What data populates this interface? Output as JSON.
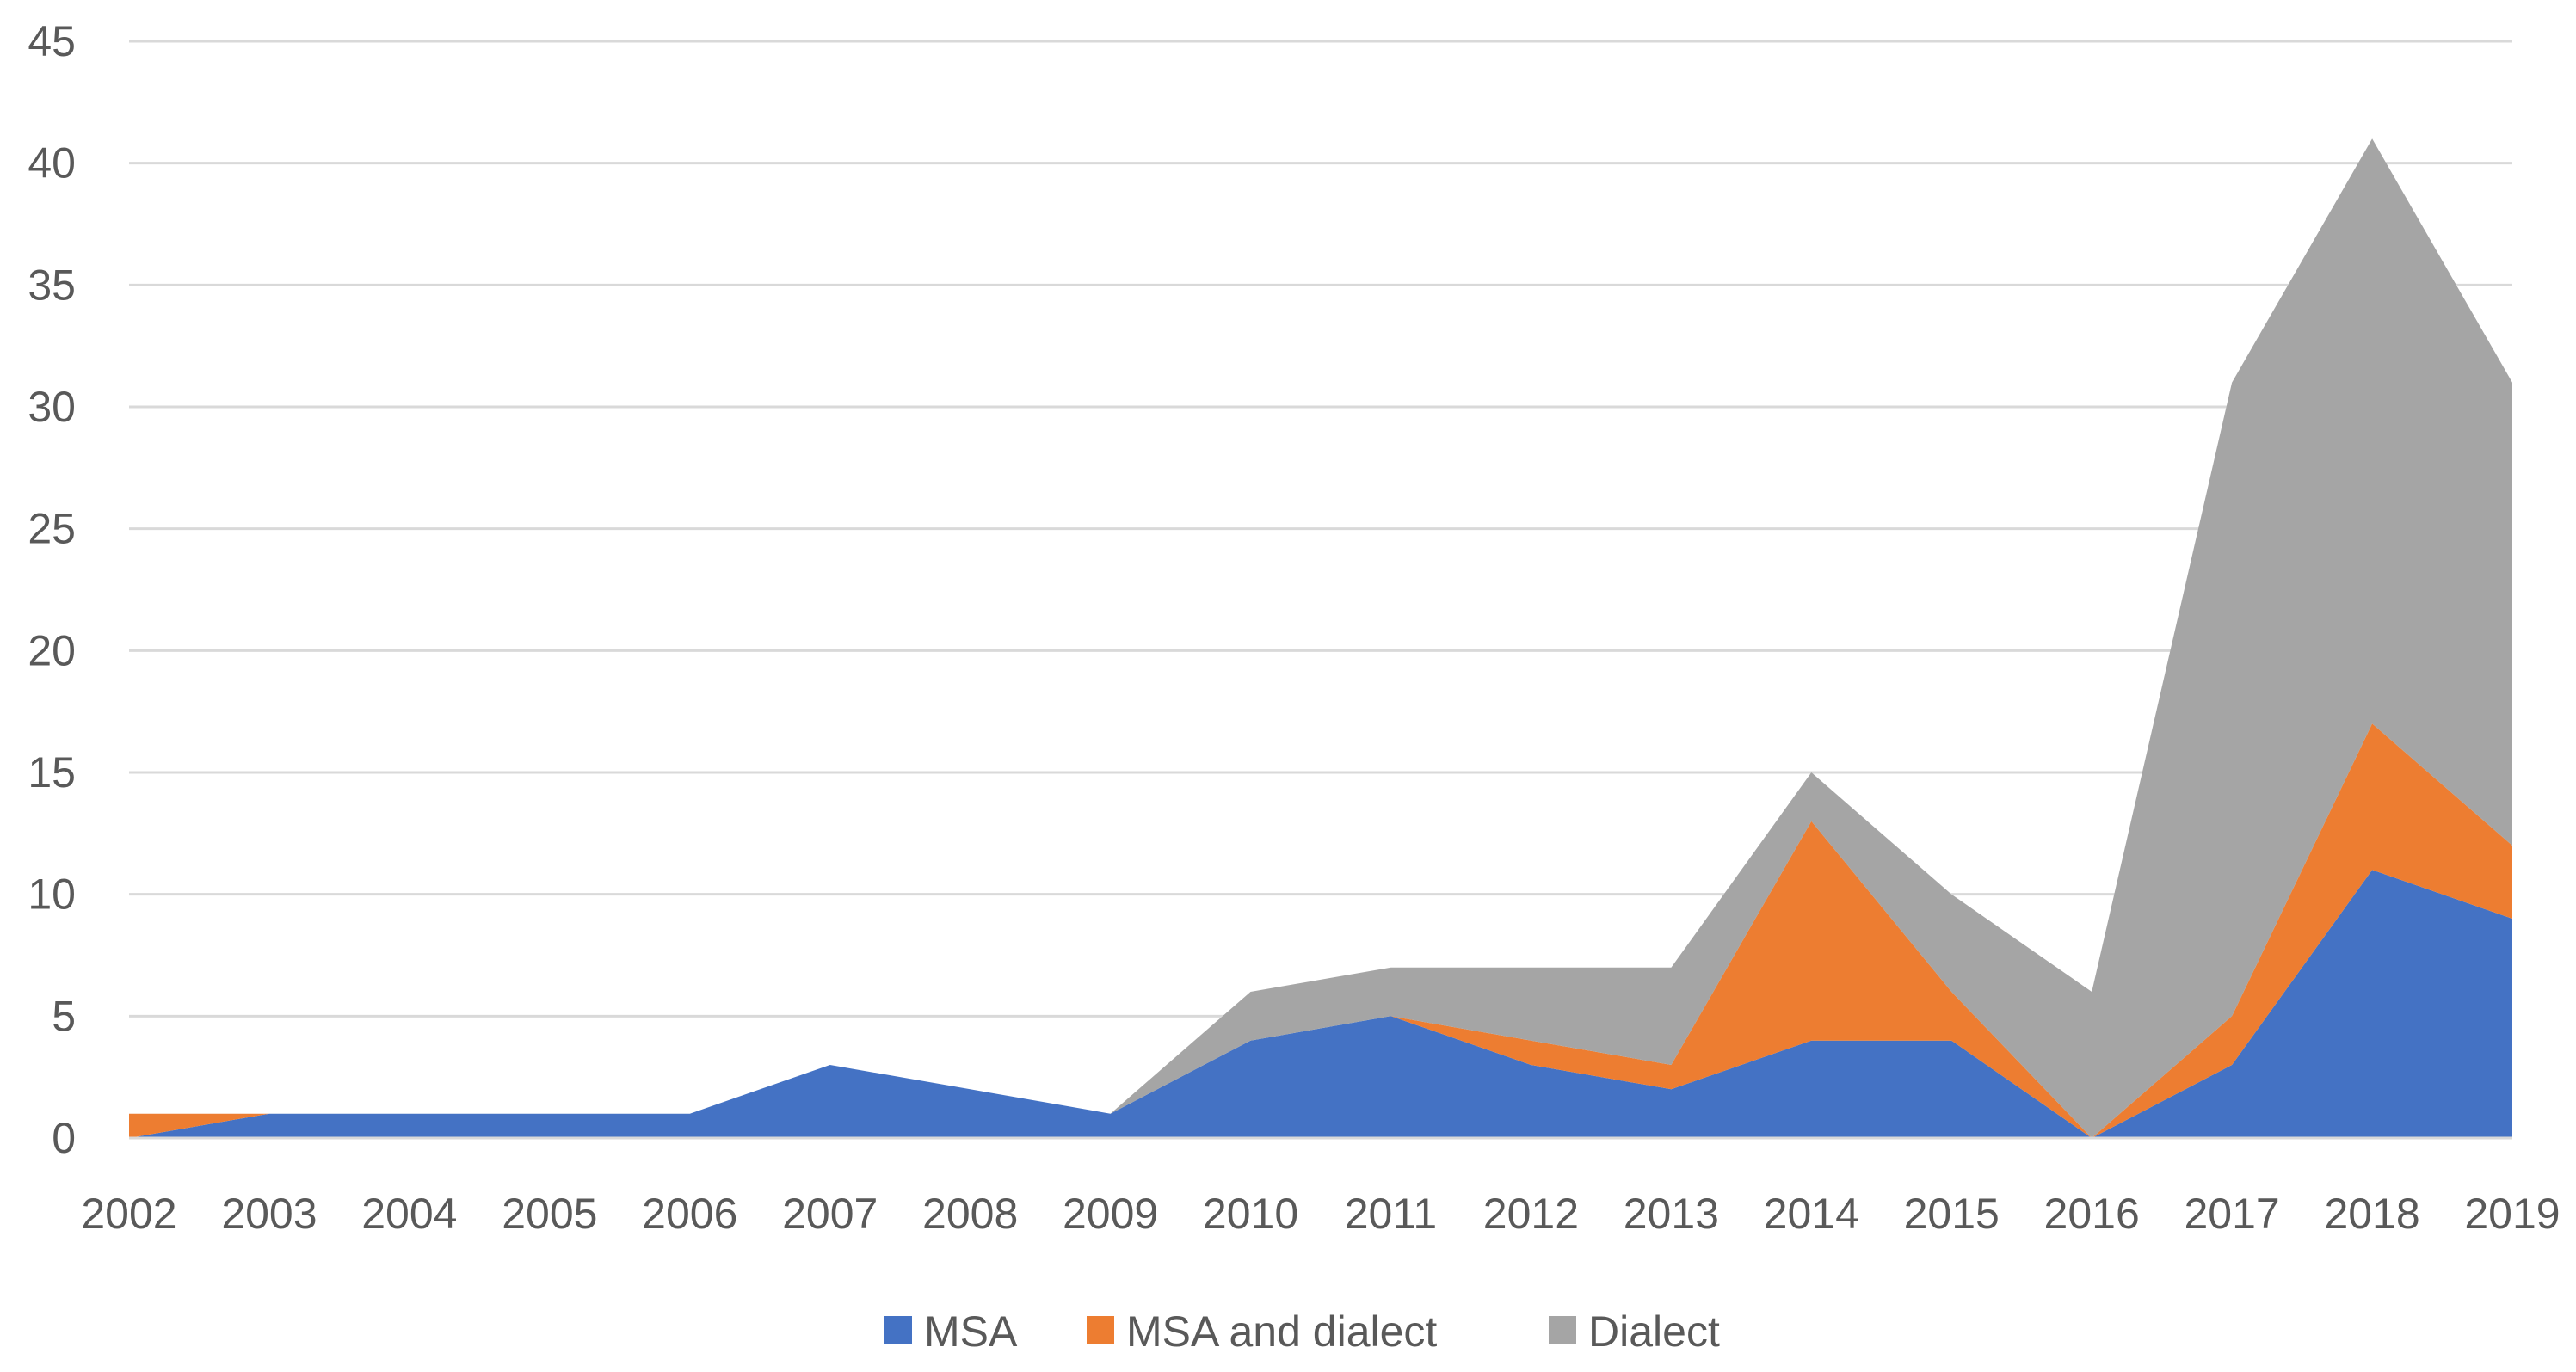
{
  "chart_data": {
    "type": "area",
    "stacked": true,
    "title": "",
    "xlabel": "",
    "ylabel": "",
    "categories": [
      "2002",
      "2003",
      "2004",
      "2005",
      "2006",
      "2007",
      "2008",
      "2009",
      "2010",
      "2011",
      "2012",
      "2013",
      "2014",
      "2015",
      "2016",
      "2017",
      "2018",
      "2019"
    ],
    "yticks": [
      "0",
      "5",
      "10",
      "15",
      "20",
      "25",
      "30",
      "35",
      "40",
      "45"
    ],
    "ylim": [
      0,
      45
    ],
    "grid": true,
    "legend_position": "bottom",
    "series": [
      {
        "name": "MSA",
        "color": "#4472C4",
        "values": [
          0,
          1,
          1,
          1,
          1,
          3,
          2,
          1,
          4,
          5,
          3,
          2,
          4,
          4,
          0,
          3,
          11,
          9
        ]
      },
      {
        "name": "MSA and dialect",
        "color": "#ED7D31",
        "values": [
          1,
          0,
          0,
          0,
          0,
          0,
          0,
          0,
          0,
          0,
          1,
          1,
          9,
          2,
          0,
          2,
          6,
          3
        ]
      },
      {
        "name": "Dialect",
        "color": "#A5A5A5",
        "values": [
          0,
          0,
          0,
          0,
          0,
          0,
          0,
          0,
          2,
          2,
          3,
          4,
          2,
          4,
          6,
          26,
          24,
          19
        ]
      }
    ]
  }
}
